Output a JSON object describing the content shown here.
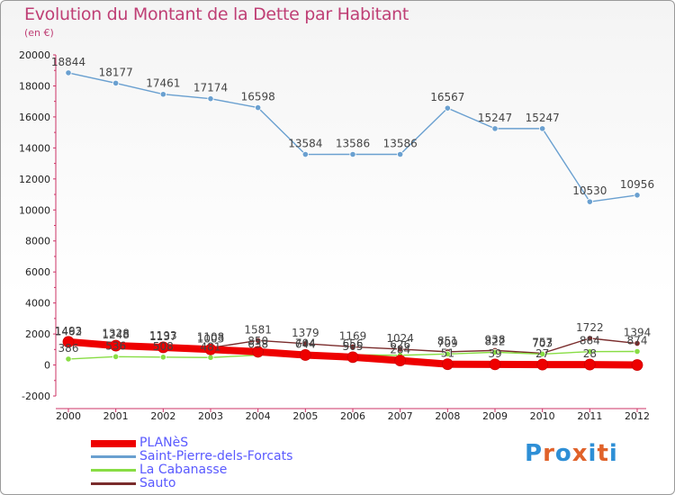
{
  "title": "Evolution du Montant de la Dette par Habitant",
  "subtitle": "(en €)",
  "logo": {
    "text": "Proxiti",
    "letters": [
      "P",
      "r",
      "o",
      "x",
      "i",
      "t",
      "i"
    ],
    "colors": [
      "#2e8fd6",
      "#e0622a",
      "#2e8fd6",
      "#e0622a",
      "#2e8fd6",
      "#e0622a",
      "#2e8fd6"
    ]
  },
  "chart_data": {
    "type": "line",
    "title": "Evolution du Montant de la Dette par Habitant",
    "ylabel": "(en €)",
    "categories": [
      "2000",
      "2001",
      "2002",
      "2003",
      "2004",
      "2005",
      "2006",
      "2007",
      "2008",
      "2009",
      "2010",
      "2011",
      "2012"
    ],
    "ylim": [
      -2000,
      20000
    ],
    "yticks": [
      -2000,
      0,
      2000,
      4000,
      6000,
      8000,
      10000,
      12000,
      14000,
      16000,
      18000,
      20000
    ],
    "series": [
      {
        "name": "PLANèS",
        "color": "#ee0000",
        "values": [
          1493,
          1248,
          1137,
          1003,
          850,
          644,
          505,
          284,
          51,
          39,
          27,
          28,
          0
        ],
        "labels": [
          "1493",
          "1248",
          "1137",
          "1003",
          "850",
          "644",
          "505",
          "284",
          "51",
          "39",
          "27",
          "28",
          ""
        ]
      },
      {
        "name": "Saint-Pierre-dels-Forcats",
        "color": "#6aa0d0",
        "values": [
          18844,
          18177,
          17461,
          17174,
          16598,
          13584,
          13586,
          13586,
          16567,
          15247,
          15247,
          10530,
          10956
        ],
        "labels": [
          "18844",
          "18177",
          "17461",
          "17174",
          "16598",
          "13584",
          "13586",
          "13586",
          "16567",
          "15247",
          "15247",
          "10530",
          "10956"
        ]
      },
      {
        "name": "La Cabanasse",
        "color": "#88dd44",
        "values": [
          386,
          536,
          508,
          481,
          638,
          704,
          656,
          626,
          709,
          822,
          703,
          864,
          874
        ],
        "labels": [
          "386",
          "536",
          "508",
          "481",
          "638",
          "704",
          "656",
          "626",
          "709",
          "822",
          "703",
          "864",
          "874"
        ]
      },
      {
        "name": "Sauto",
        "color": "#7a2c2c",
        "values": [
          1462,
          1328,
          1193,
          1108,
          1581,
          1379,
          1169,
          1024,
          851,
          938,
          757,
          1722,
          1394
        ],
        "labels": [
          "1462",
          "1328",
          "1193",
          "1108",
          "1581",
          "1379",
          "1169",
          "1024",
          "851",
          "938",
          "757",
          "1722",
          "1394"
        ]
      }
    ]
  },
  "legend": [
    {
      "label": "PLANèS",
      "color": "#ee0000",
      "thick": true
    },
    {
      "label": "Saint-Pierre-dels-Forcats",
      "color": "#6aa0d0",
      "thick": false
    },
    {
      "label": "La Cabanasse",
      "color": "#88dd44",
      "thick": false
    },
    {
      "label": "Sauto",
      "color": "#7a2c2c",
      "thick": false
    }
  ]
}
